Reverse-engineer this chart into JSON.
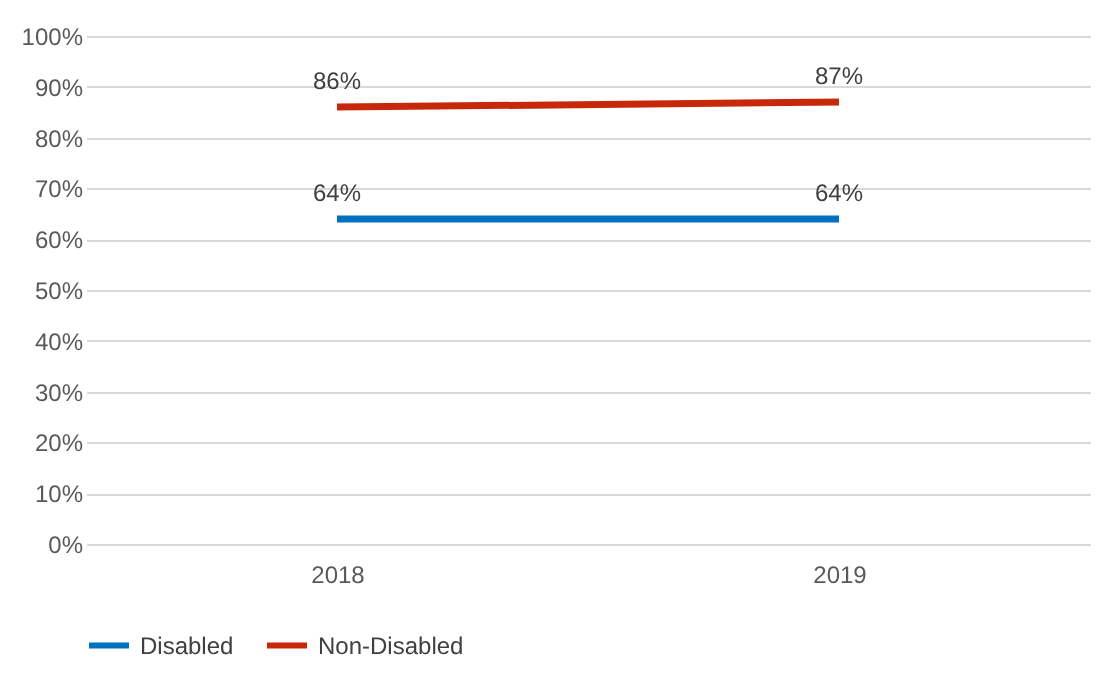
{
  "chart_data": {
    "type": "line",
    "categories": [
      "2018",
      "2019"
    ],
    "series": [
      {
        "name": "Disabled",
        "color": "#0070c0",
        "values": [
          64,
          64
        ],
        "value_labels": [
          "64%",
          "64%"
        ]
      },
      {
        "name": "Non-Disabled",
        "color": "#c8280a",
        "values": [
          86,
          87
        ],
        "value_labels": [
          "86%",
          "87%"
        ]
      }
    ],
    "ylim": [
      0,
      100
    ],
    "yticks": [
      {
        "value": 0,
        "label": "0%"
      },
      {
        "value": 10,
        "label": "10%"
      },
      {
        "value": 20,
        "label": "20%"
      },
      {
        "value": 30,
        "label": "30%"
      },
      {
        "value": 40,
        "label": "40%"
      },
      {
        "value": 50,
        "label": "50%"
      },
      {
        "value": 60,
        "label": "60%"
      },
      {
        "value": 70,
        "label": "70%"
      },
      {
        "value": 80,
        "label": "80%"
      },
      {
        "value": 90,
        "label": "90%"
      },
      {
        "value": 100,
        "label": "100%"
      }
    ],
    "grid": "y",
    "legend": "bottom",
    "line_style": "solid"
  }
}
